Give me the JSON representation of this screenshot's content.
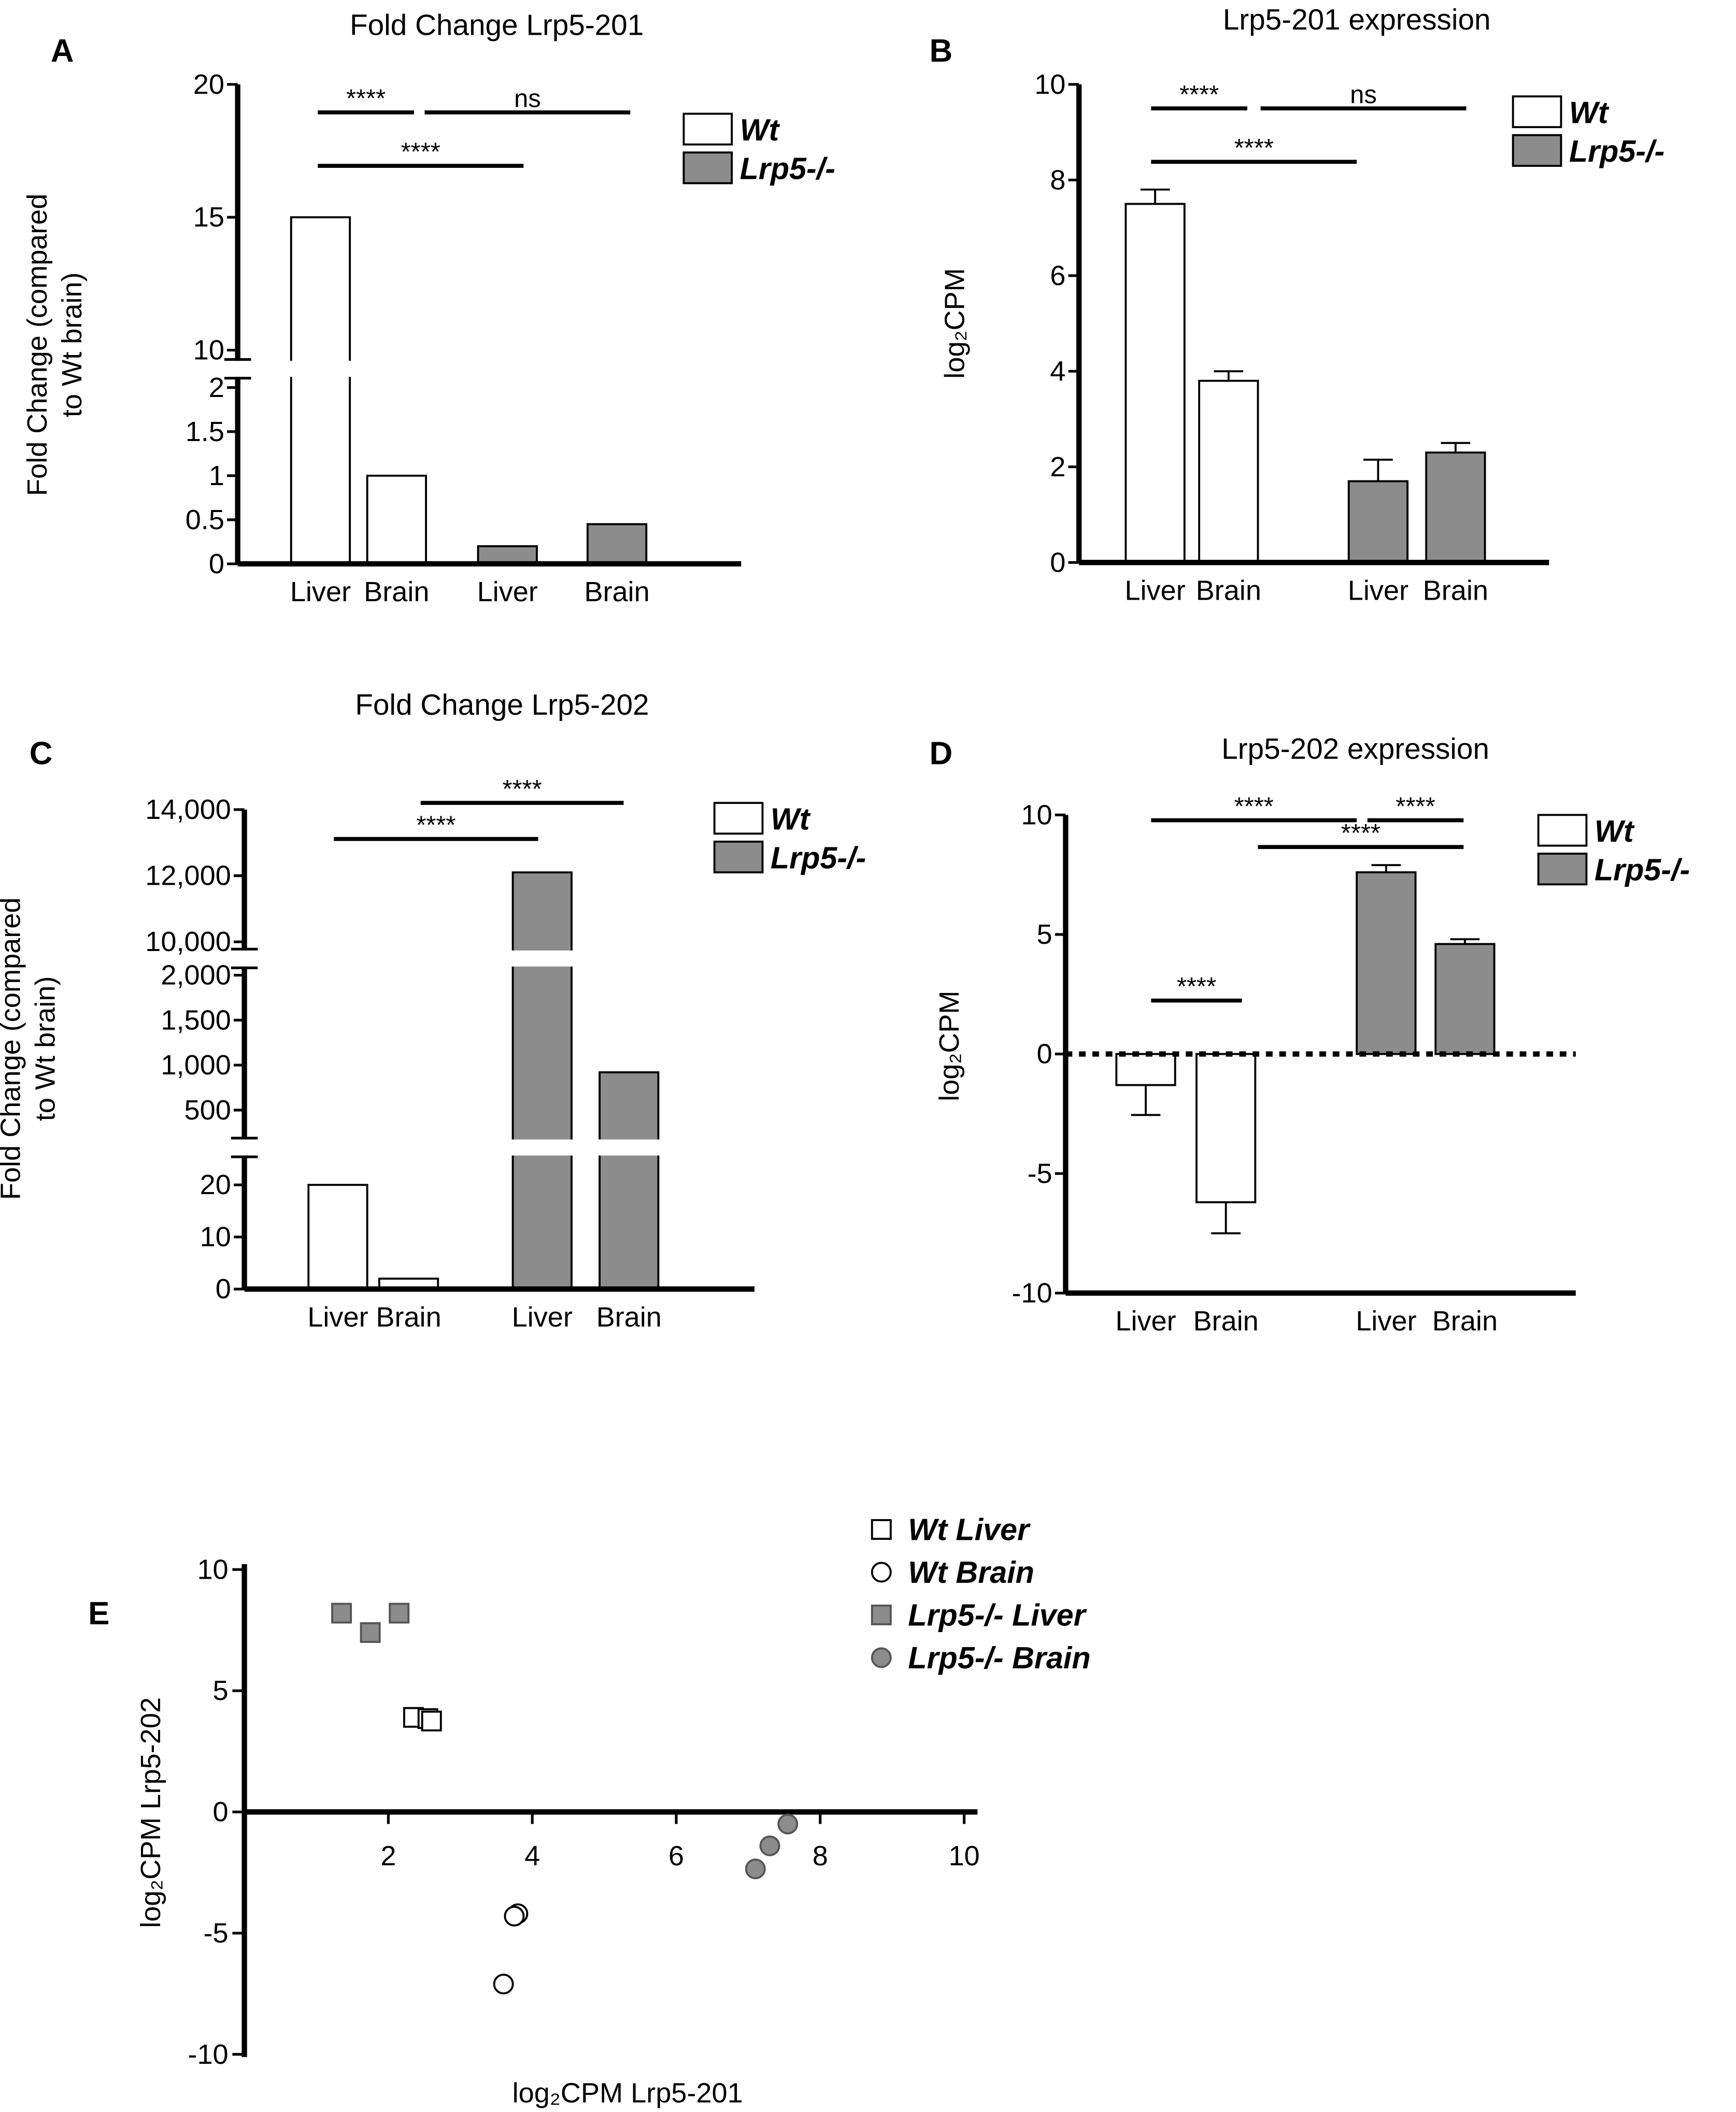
{
  "chart_data": [
    {
      "type": "bar",
      "panel": "A",
      "title": "Fold Change Lrp5-201",
      "ylabel": [
        "Fold Change (compared",
        "to Wt brain)"
      ],
      "categories": [
        "Liver",
        "Brain",
        "Liver",
        "Brain"
      ],
      "series": [
        {
          "name": "Wt",
          "color": "#ffffff",
          "values": [
            15,
            1,
            null,
            null
          ]
        },
        {
          "name": "Lrp5-/-",
          "color": "#8c8c8c",
          "values": [
            null,
            null,
            0.2,
            0.45
          ]
        }
      ],
      "ylim": [
        0,
        20
      ],
      "yticks": [
        0,
        0.5,
        1,
        1.5,
        2,
        10,
        15,
        20
      ],
      "axis_breaks": [
        [
          2,
          10
        ]
      ],
      "annotations": [
        "****",
        "ns",
        "****"
      ]
    },
    {
      "type": "bar",
      "panel": "B",
      "title": "Lrp5-201 expression",
      "ylabel": [
        "log₂CPM"
      ],
      "categories": [
        "Liver",
        "Brain",
        "Liver",
        "Brain"
      ],
      "series": [
        {
          "name": "Wt",
          "color": "#ffffff",
          "values": [
            7.5,
            3.8,
            null,
            null
          ],
          "errors": [
            0.3,
            0.2,
            null,
            null
          ]
        },
        {
          "name": "Lrp5-/-",
          "color": "#8c8c8c",
          "values": [
            null,
            null,
            1.7,
            2.3
          ],
          "errors": [
            null,
            null,
            0.45,
            0.2
          ]
        }
      ],
      "ylim": [
        0,
        10
      ],
      "yticks": [
        0,
        2,
        4,
        6,
        8,
        10
      ],
      "annotations": [
        "****",
        "ns",
        "****"
      ]
    },
    {
      "type": "bar",
      "panel": "C",
      "title": "Fold Change Lrp5-202",
      "ylabel": [
        "Fold Change (compared",
        "to Wt brain)"
      ],
      "categories": [
        "Liver",
        "Brain",
        "Liver",
        "Brain"
      ],
      "series": [
        {
          "name": "Wt",
          "color": "#ffffff",
          "values": [
            20,
            2,
            null,
            null
          ]
        },
        {
          "name": "Lrp5-/-",
          "color": "#8c8c8c",
          "values": [
            null,
            null,
            12100,
            920
          ]
        }
      ],
      "ylim": [
        0,
        14000
      ],
      "yticks": [
        0,
        10,
        20,
        500,
        {
          "value": 1000,
          "label": "1,000"
        },
        {
          "value": 1500,
          "label": "1,500"
        },
        {
          "value": 2000,
          "label": "2,000"
        },
        {
          "value": 10000,
          "label": "10,000"
        },
        {
          "value": 12000,
          "label": "12,000"
        },
        {
          "value": 14000,
          "label": "14,000"
        }
      ],
      "axis_breaks": [
        [
          20,
          500
        ],
        [
          2000,
          10000
        ]
      ],
      "annotations": [
        "****",
        "****"
      ]
    },
    {
      "type": "bar",
      "panel": "D",
      "title": "Lrp5-202 expression",
      "ylabel": [
        "log₂CPM"
      ],
      "categories": [
        "Liver",
        "Brain",
        "Liver",
        "Brain"
      ],
      "series": [
        {
          "name": "Wt",
          "color": "#ffffff",
          "values": [
            -1.3,
            -6.2,
            null,
            null
          ],
          "errors": [
            1.25,
            1.3,
            null,
            null
          ]
        },
        {
          "name": "Lrp5-/-",
          "color": "#8c8c8c",
          "values": [
            null,
            null,
            7.6,
            4.6
          ],
          "errors": [
            null,
            null,
            0.3,
            0.2
          ]
        }
      ],
      "ylim": [
        -10,
        10
      ],
      "yticks": [
        -10,
        -5,
        0,
        5,
        10
      ],
      "annotations": [
        "****",
        "****",
        "****",
        "****"
      ]
    },
    {
      "type": "scatter",
      "panel": "E",
      "xlabel": "log₂CPM Lrp5-201",
      "ylabel": [
        "log₂CPM Lrp5-202"
      ],
      "series": [
        {
          "name": "Wt Liver",
          "color": "#ffffff",
          "marker": "square",
          "x": [
            2.35,
            2.55,
            2.6
          ],
          "y": [
            3.9,
            3.85,
            3.75
          ]
        },
        {
          "name": "Wt Brain",
          "color": "#ffffff",
          "marker": "circle",
          "x": [
            3.8,
            3.75,
            3.6
          ],
          "y": [
            -4.2,
            -4.3,
            -7.1
          ]
        },
        {
          "name": "Lrp5-/- Liver",
          "color": "#8c8c8c",
          "marker": "square",
          "x": [
            1.35,
            1.75,
            2.15
          ],
          "y": [
            8.2,
            7.4,
            8.2
          ]
        },
        {
          "name": "Lrp5-/- Brain",
          "color": "#8c8c8c",
          "marker": "circle",
          "x": [
            7.55,
            7.3,
            7.1
          ],
          "y": [
            -0.5,
            -1.4,
            -2.35
          ]
        }
      ],
      "xlim": [
        0,
        10
      ],
      "xticks": [
        2,
        4,
        6,
        8,
        10
      ],
      "ylim": [
        -10,
        10
      ],
      "yticks": [
        -10,
        -5,
        0,
        5,
        10
      ]
    }
  ]
}
